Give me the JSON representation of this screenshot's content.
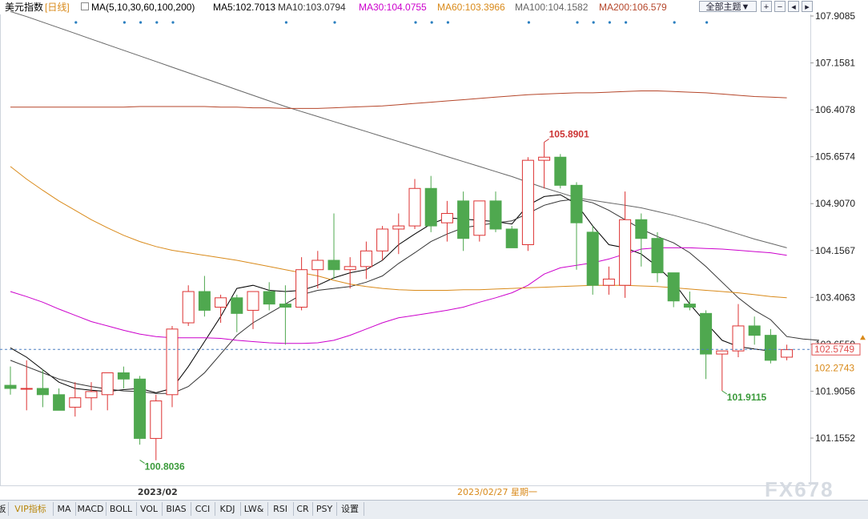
{
  "header": {
    "symbol": "美元指数",
    "period": "[日线]",
    "ma_label": "MA(5,10,30,60,100,200)",
    "ma_values": [
      {
        "text": "MA5:102.7013",
        "color": "#000000"
      },
      {
        "text": "MA10:103.0794",
        "color": "#333333"
      },
      {
        "text": "MA30:104.0755",
        "color": "#cc00cc"
      },
      {
        "text": "MA60:103.3966",
        "color": "#d98a1a"
      },
      {
        "text": "MA100:104.1582",
        "color": "#666666"
      },
      {
        "text": "MA200:106.579",
        "color": "#b5462a"
      }
    ],
    "theme_button": "全部主题▼",
    "control_icons": [
      "grid-plus-icon",
      "grid-minus-icon",
      "scroll-left-icon",
      "scroll-right-icon"
    ]
  },
  "chart_data": {
    "type": "candlestick",
    "y_axis_ticks": [
      "107.9085",
      "107.1581",
      "106.4078",
      "105.6574",
      "104.9070",
      "104.1567",
      "103.4063",
      "102.6559",
      "101.9056",
      "101.1552"
    ],
    "ylim": [
      100.6,
      108.1
    ],
    "current_price": {
      "value": 102.5749,
      "label": "102.5749",
      "color": "#e05050"
    },
    "last_close_marker": {
      "value": 102.2743,
      "label": "102.2743",
      "color": "#d98a1a"
    },
    "x_labels": [
      {
        "index": 9,
        "label": "2023/02"
      },
      {
        "index": 30,
        "label": "2023/02/27 星期一"
      }
    ],
    "annotations": [
      {
        "index": 33,
        "value": 105.8901,
        "label": "105.8901",
        "color": "#cc3333"
      },
      {
        "index": 8,
        "value": 100.8036,
        "label": "100.8036",
        "color": "#3a9a3a"
      },
      {
        "index": 44,
        "value": 101.9115,
        "label": "101.9115",
        "color": "#3a9a3a"
      }
    ],
    "up_color": "#dd3333",
    "down_color": "#4fa84f",
    "candles": [
      {
        "o": 102.0,
        "h": 102.3,
        "l": 101.85,
        "c": 101.95
      },
      {
        "o": 101.95,
        "h": 102.4,
        "l": 101.6,
        "c": 101.95
      },
      {
        "o": 101.95,
        "h": 102.25,
        "l": 101.65,
        "c": 101.85
      },
      {
        "o": 101.85,
        "h": 101.95,
        "l": 101.65,
        "c": 101.6
      },
      {
        "o": 101.65,
        "h": 102.05,
        "l": 101.5,
        "c": 101.8
      },
      {
        "o": 101.8,
        "h": 102.05,
        "l": 101.6,
        "c": 101.9
      },
      {
        "o": 101.85,
        "h": 102.2,
        "l": 101.6,
        "c": 102.2
      },
      {
        "o": 102.2,
        "h": 102.3,
        "l": 101.95,
        "c": 102.1
      },
      {
        "o": 102.1,
        "h": 102.15,
        "l": 101.05,
        "c": 101.15
      },
      {
        "o": 101.15,
        "h": 101.85,
        "l": 100.8,
        "c": 101.75
      },
      {
        "o": 101.85,
        "h": 102.95,
        "l": 101.65,
        "c": 102.9
      },
      {
        "o": 103.0,
        "h": 103.6,
        "l": 102.95,
        "c": 103.5
      },
      {
        "o": 103.5,
        "h": 103.75,
        "l": 103.1,
        "c": 103.2
      },
      {
        "o": 103.25,
        "h": 103.45,
        "l": 103.0,
        "c": 103.4
      },
      {
        "o": 103.4,
        "h": 103.45,
        "l": 102.85,
        "c": 103.15
      },
      {
        "o": 103.2,
        "h": 103.5,
        "l": 102.9,
        "c": 103.5
      },
      {
        "o": 103.5,
        "h": 103.65,
        "l": 103.2,
        "c": 103.3
      },
      {
        "o": 103.3,
        "h": 103.6,
        "l": 102.65,
        "c": 103.25
      },
      {
        "o": 103.25,
        "h": 104.05,
        "l": 103.2,
        "c": 103.85
      },
      {
        "o": 103.85,
        "h": 104.15,
        "l": 103.55,
        "c": 104.0
      },
      {
        "o": 104.0,
        "h": 104.75,
        "l": 103.7,
        "c": 103.85
      },
      {
        "o": 103.85,
        "h": 104.05,
        "l": 103.55,
        "c": 103.9
      },
      {
        "o": 103.9,
        "h": 104.3,
        "l": 103.7,
        "c": 104.15
      },
      {
        "o": 104.15,
        "h": 104.55,
        "l": 104.0,
        "c": 104.5
      },
      {
        "o": 104.5,
        "h": 104.75,
        "l": 104.1,
        "c": 104.55
      },
      {
        "o": 104.55,
        "h": 105.3,
        "l": 104.5,
        "c": 105.15
      },
      {
        "o": 105.15,
        "h": 105.35,
        "l": 104.45,
        "c": 104.55
      },
      {
        "o": 104.6,
        "h": 104.95,
        "l": 104.3,
        "c": 104.75
      },
      {
        "o": 104.95,
        "h": 105.1,
        "l": 104.15,
        "c": 104.35
      },
      {
        "o": 104.4,
        "h": 104.95,
        "l": 104.3,
        "c": 104.95
      },
      {
        "o": 104.95,
        "h": 105.1,
        "l": 104.45,
        "c": 104.5
      },
      {
        "o": 104.5,
        "h": 104.55,
        "l": 104.2,
        "c": 104.2
      },
      {
        "o": 104.25,
        "h": 105.65,
        "l": 104.15,
        "c": 105.6
      },
      {
        "o": 105.6,
        "h": 105.89,
        "l": 105.15,
        "c": 105.65
      },
      {
        "o": 105.65,
        "h": 105.7,
        "l": 105.15,
        "c": 105.2
      },
      {
        "o": 105.2,
        "h": 105.25,
        "l": 103.85,
        "c": 104.6
      },
      {
        "o": 104.45,
        "h": 104.55,
        "l": 103.45,
        "c": 103.6
      },
      {
        "o": 103.6,
        "h": 103.9,
        "l": 103.45,
        "c": 103.7
      },
      {
        "o": 103.6,
        "h": 105.1,
        "l": 103.4,
        "c": 104.65
      },
      {
        "o": 104.65,
        "h": 104.75,
        "l": 103.9,
        "c": 104.35
      },
      {
        "o": 104.35,
        "h": 104.45,
        "l": 103.65,
        "c": 103.8
      },
      {
        "o": 103.8,
        "h": 103.8,
        "l": 103.25,
        "c": 103.35
      },
      {
        "o": 103.3,
        "h": 103.5,
        "l": 103.2,
        "c": 103.25
      },
      {
        "o": 103.15,
        "h": 103.2,
        "l": 102.1,
        "c": 102.5
      },
      {
        "o": 102.5,
        "h": 102.55,
        "l": 101.91,
        "c": 102.55
      },
      {
        "o": 102.55,
        "h": 103.3,
        "l": 102.45,
        "c": 102.95
      },
      {
        "o": 102.95,
        "h": 103.1,
        "l": 102.65,
        "c": 102.8
      },
      {
        "o": 102.8,
        "h": 102.9,
        "l": 102.35,
        "c": 102.4
      },
      {
        "o": 102.45,
        "h": 102.65,
        "l": 102.4,
        "c": 102.57
      }
    ],
    "ma_series": [
      {
        "name": "MA5",
        "color": "#000000",
        "start": 0,
        "values": [
          102.6,
          102.45,
          102.25,
          102.05,
          101.95,
          101.92,
          101.9,
          101.93,
          101.95,
          101.88,
          101.95,
          102.3,
          102.7,
          103.1,
          103.55,
          103.6,
          103.52,
          103.5,
          103.52,
          103.6,
          103.72,
          103.8,
          103.85,
          104.0,
          104.25,
          104.42,
          104.58,
          104.68,
          104.66,
          104.64,
          104.62,
          104.58,
          104.88,
          105.02,
          105.05,
          104.9,
          104.55,
          104.25,
          104.2,
          104.1,
          103.9,
          103.65,
          103.3,
          103.0,
          102.72,
          102.62,
          102.58,
          102.55
        ]
      },
      {
        "name": "MA10",
        "color": "#333333",
        "start": 0,
        "values": [
          102.4,
          102.3,
          102.2,
          102.1,
          102.03,
          101.98,
          101.94,
          101.91,
          101.9,
          101.87,
          101.87,
          101.98,
          102.2,
          102.5,
          102.8,
          103.0,
          103.15,
          103.3,
          103.45,
          103.52,
          103.55,
          103.58,
          103.65,
          103.75,
          103.95,
          104.12,
          104.3,
          104.42,
          104.52,
          104.56,
          104.6,
          104.63,
          104.75,
          104.88,
          104.95,
          104.98,
          104.92,
          104.8,
          104.65,
          104.5,
          104.38,
          104.28,
          104.12,
          103.9,
          103.65,
          103.4,
          103.2,
          103.05,
          102.78,
          102.74,
          102.72
        ]
      },
      {
        "name": "MA30",
        "color": "#cc00cc",
        "start": 0,
        "values": [
          103.5,
          103.42,
          103.33,
          103.22,
          103.12,
          103.02,
          102.95,
          102.88,
          102.82,
          102.78,
          102.76,
          102.76,
          102.76,
          102.75,
          102.72,
          102.7,
          102.68,
          102.67,
          102.67,
          102.68,
          102.72,
          102.8,
          102.9,
          103.0,
          103.08,
          103.12,
          103.16,
          103.2,
          103.25,
          103.33,
          103.4,
          103.48,
          103.6,
          103.78,
          103.88,
          103.92,
          103.96,
          104.02,
          104.1,
          104.18,
          104.2,
          104.2,
          104.2,
          104.19,
          104.18,
          104.16,
          104.14,
          104.12,
          104.08
        ]
      },
      {
        "name": "MA60",
        "color": "#d98a1a",
        "start": 0,
        "values": [
          105.5,
          105.3,
          105.12,
          104.95,
          104.8,
          104.65,
          104.52,
          104.4,
          104.3,
          104.22,
          104.16,
          104.12,
          104.08,
          104.04,
          104.0,
          103.95,
          103.9,
          103.85,
          103.8,
          103.75,
          103.68,
          103.62,
          103.58,
          103.55,
          103.53,
          103.52,
          103.52,
          103.52,
          103.53,
          103.53,
          103.54,
          103.55,
          103.56,
          103.57,
          103.58,
          103.59,
          103.6,
          103.6,
          103.6,
          103.59,
          103.58,
          103.56,
          103.54,
          103.52,
          103.5,
          103.48,
          103.45,
          103.42,
          103.4
        ]
      },
      {
        "name": "MA100",
        "color": "#666666",
        "start": 0,
        "values": [
          107.98,
          107.9,
          107.81,
          107.72,
          107.63,
          107.54,
          107.45,
          107.36,
          107.27,
          107.18,
          107.09,
          107.0,
          106.91,
          106.82,
          106.73,
          106.64,
          106.55,
          106.46,
          106.38,
          106.3,
          106.22,
          106.14,
          106.06,
          105.98,
          105.9,
          105.82,
          105.74,
          105.66,
          105.58,
          105.5,
          105.42,
          105.34,
          105.25,
          105.16,
          105.08,
          105.0,
          104.96,
          104.92,
          104.88,
          104.84,
          104.78,
          104.72,
          104.65,
          104.58,
          104.5,
          104.42,
          104.34,
          104.27,
          104.2
        ]
      },
      {
        "name": "MA200",
        "color": "#b5462a",
        "start": 0,
        "values": [
          106.45,
          106.45,
          106.45,
          106.45,
          106.45,
          106.45,
          106.45,
          106.45,
          106.46,
          106.46,
          106.46,
          106.46,
          106.46,
          106.45,
          106.45,
          106.44,
          106.44,
          106.43,
          106.43,
          106.43,
          106.44,
          106.45,
          106.46,
          106.47,
          106.49,
          106.51,
          106.53,
          106.55,
          106.57,
          106.59,
          106.61,
          106.63,
          106.65,
          106.66,
          106.67,
          106.68,
          106.68,
          106.69,
          106.7,
          106.71,
          106.71,
          106.7,
          106.69,
          106.68,
          106.66,
          106.64,
          106.62,
          106.61,
          106.6
        ]
      }
    ],
    "event_marker_indices": [
      4,
      7,
      8,
      9,
      10,
      17,
      20,
      25,
      26,
      27,
      32,
      35,
      36,
      37,
      38,
      41,
      43
    ]
  },
  "bottom_tabs": [
    "板",
    "VIP指标",
    "MA",
    "MACD",
    "BOLL",
    "VOL",
    "BIAS",
    "CCI",
    "KDJ",
    "LW&",
    "RSI",
    "CR",
    "PSY",
    "设置"
  ],
  "watermark": "FX678"
}
